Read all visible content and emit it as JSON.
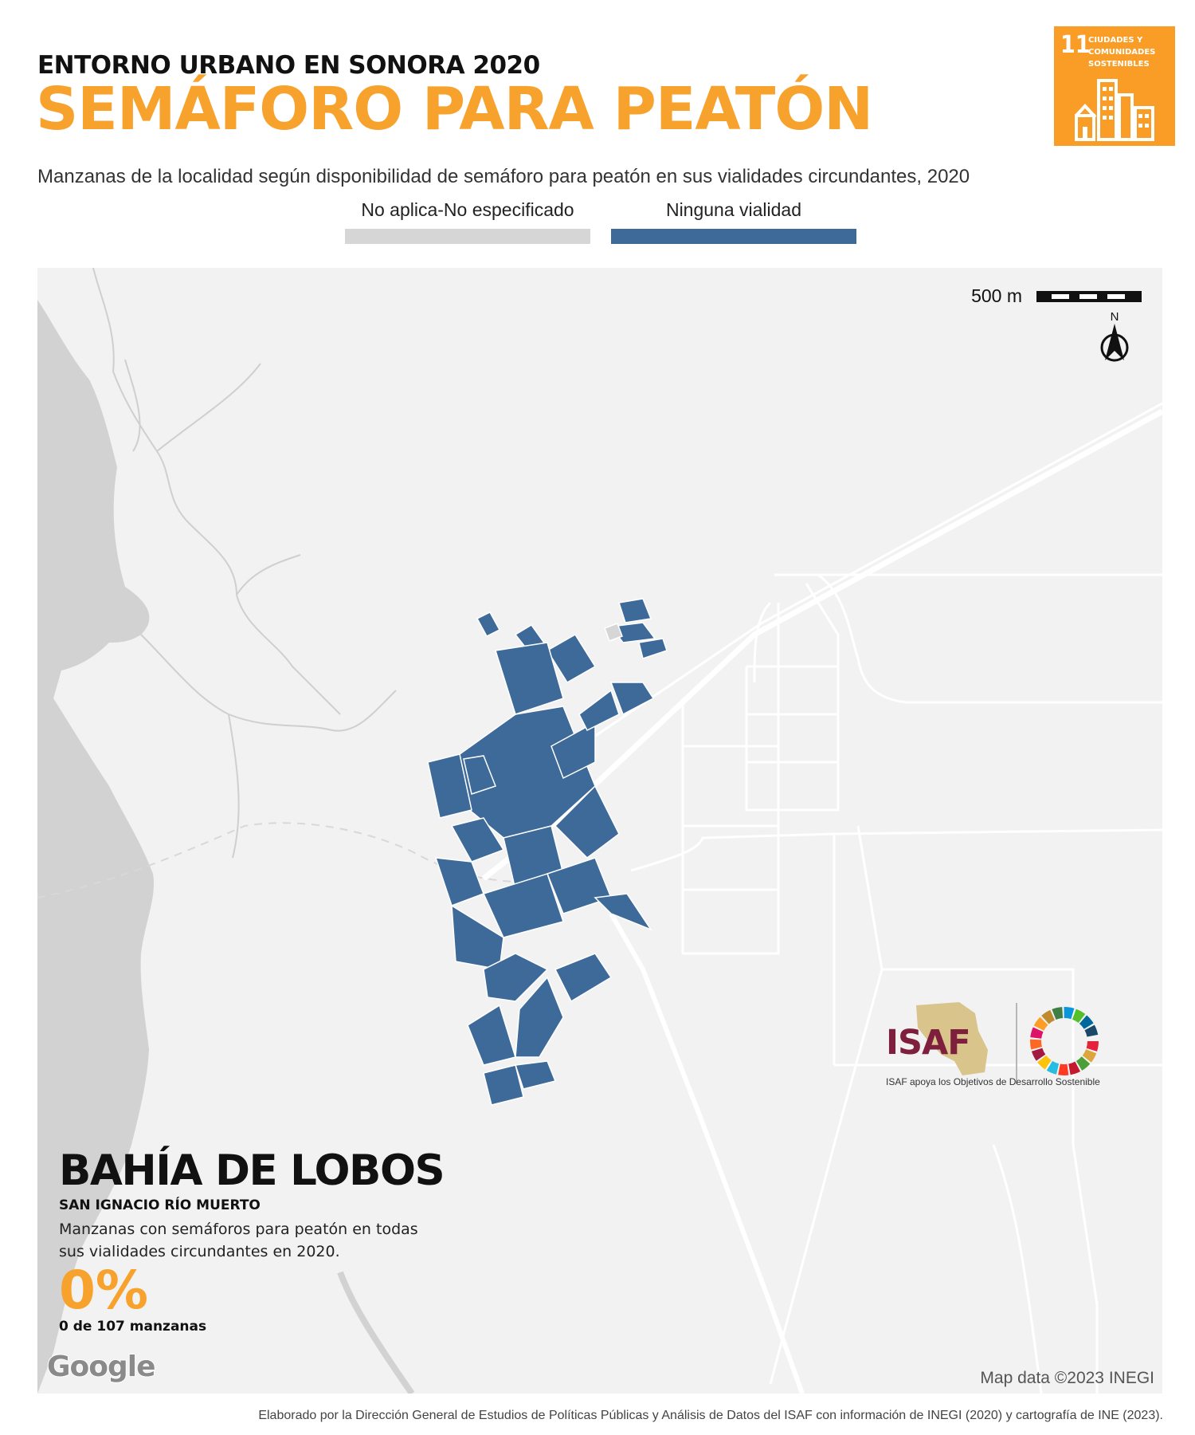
{
  "header": {
    "kicker": "ENTORNO URBANO EN SONORA 2020",
    "title": "SEMÁFORO PARA PEATÓN",
    "subtitle": "Manzanas de la localidad según disponibilidad de semáforo para peatón en sus vialidades circundantes, 2020"
  },
  "sdg_badge": {
    "number": "11",
    "text": "CIUDADES Y COMUNIDADES SOSTENIBLES",
    "color": "#f99d26"
  },
  "legend": [
    {
      "label": "No aplica-No especificado",
      "color": "#d6d6d6"
    },
    {
      "label": "Ninguna vialidad",
      "color": "#3d6a99"
    }
  ],
  "map": {
    "scale_label": "500 m",
    "north_label": "N",
    "land_color": "#f2f2f2",
    "water_color": "#d2d2d2",
    "block_color": "#3d6a99",
    "credit": "Map data ©2023 INEGI",
    "google_label": "Google"
  },
  "locality": {
    "name": "BAHÍA DE LOBOS",
    "municipality": "SAN IGNACIO RÍO MUERTO",
    "description": "Manzanas con semáforos para peatón en todas sus vialidades circundantes en 2020.",
    "percent": "0%",
    "count_text": "0 de 107 manzanas",
    "percent_value": 0,
    "blocks_with_signal": 0,
    "total_blocks": 107
  },
  "logos": {
    "isaf": "ISAF",
    "tagline": "ISAF apoya los Objetivos de Desarrollo Sostenible",
    "isaf_color": "#7d1f3d"
  },
  "footer": {
    "note": "Elaborado por la Dirección General de Estudios de Políticas Públicas y Análisis de Datos del ISAF con información de INEGI (2020) y cartografía de INE (2023)."
  }
}
